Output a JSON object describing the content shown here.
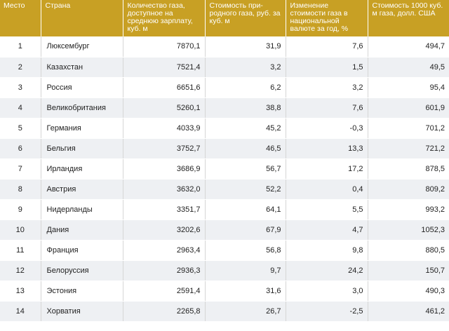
{
  "headers": [
    "Место",
    "Страна",
    "Количество газа, доступное на среднюю зарплату, куб. м",
    "Стоимость при-родного газа, руб. за куб. м",
    "Изменение стоимости газа в национальной валюте за год, %",
    "Стоимость 1000 куб. м газа, долл. США"
  ],
  "rows": [
    [
      "1",
      "Люксембург",
      "7870,1",
      "31,9",
      "7,6",
      "494,7"
    ],
    [
      "2",
      "Казахстан",
      "7521,4",
      "3,2",
      "1,5",
      "49,5"
    ],
    [
      "3",
      "Россия",
      "6651,6",
      "6,2",
      "3,2",
      "95,4"
    ],
    [
      "4",
      "Великобритания",
      "5260,1",
      "38,8",
      "7,6",
      "601,9"
    ],
    [
      "5",
      "Германия",
      "4033,9",
      "45,2",
      "-0,3",
      "701,2"
    ],
    [
      "6",
      "Бельгия",
      "3752,7",
      "46,5",
      "13,3",
      "721,2"
    ],
    [
      "7",
      "Ирландия",
      "3686,9",
      "56,7",
      "17,2",
      "878,5"
    ],
    [
      "8",
      "Австрия",
      "3632,0",
      "52,2",
      "0,4",
      "809,2"
    ],
    [
      "9",
      "Нидерланды",
      "3351,7",
      "64,1",
      "5,5",
      "993,2"
    ],
    [
      "10",
      "Дания",
      "3202,6",
      "67,9",
      "4,7",
      "1052,3"
    ],
    [
      "11",
      "Франция",
      "2963,4",
      "56,8",
      "9,8",
      "880,5"
    ],
    [
      "12",
      "Белоруссия",
      "2936,3",
      "9,7",
      "24,2",
      "150,7"
    ],
    [
      "13",
      "Эстония",
      "2591,4",
      "31,6",
      "3,0",
      "490,3"
    ],
    [
      "14",
      "Хорватия",
      "2265,8",
      "26,7",
      "-2,5",
      "461,2"
    ]
  ],
  "colors": {
    "header_bg": "#c8a024",
    "header_text": "#ffffff",
    "row_alt_bg": "#eef0f3"
  }
}
